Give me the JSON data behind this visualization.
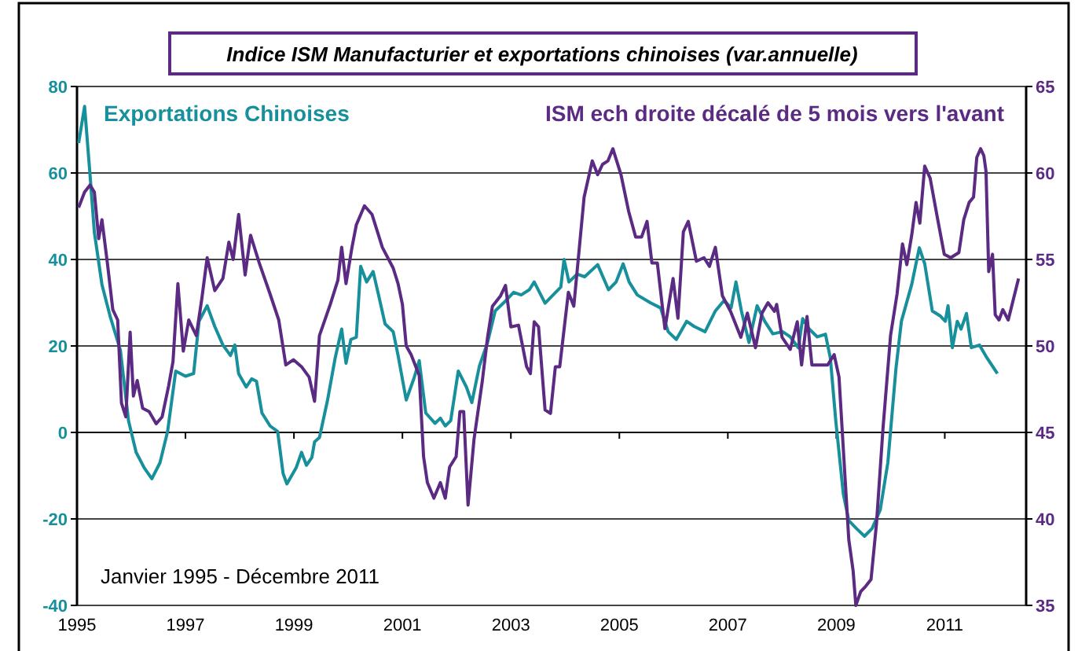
{
  "chart_data": {
    "type": "line",
    "title": "Indice ISM Manufacturier et exportations chinoises (var.annuelle)",
    "annotations": [
      "Janvier 1995 - Décembre 2011"
    ],
    "xlim": [
      1995,
      2012.5
    ],
    "xticks": [
      1995,
      1997,
      1999,
      2001,
      2003,
      2005,
      2007,
      2009,
      2011
    ],
    "ylim": [
      -40,
      80
    ],
    "yticks": [
      -40,
      -20,
      0,
      20,
      40,
      60,
      80
    ],
    "y2lim": [
      35,
      65
    ],
    "y2ticks": [
      35,
      40,
      45,
      50,
      55,
      60,
      65
    ],
    "grid": "y",
    "legend": "top",
    "series": [
      {
        "name": "Exportations Chinoises",
        "color": "#17909b",
        "x": [
          1995.03,
          1995.14,
          1995.24,
          1995.32,
          1995.46,
          1995.61,
          1995.8,
          1995.95,
          1996.09,
          1996.24,
          1996.38,
          1996.53,
          1996.67,
          1996.82,
          1997.0,
          1997.15,
          1997.25,
          1997.4,
          1997.54,
          1997.69,
          1997.83,
          1997.91,
          1997.98,
          1998.12,
          1998.22,
          1998.31,
          1998.41,
          1998.56,
          1998.7,
          1998.8,
          1998.87,
          1999.04,
          1999.14,
          1999.23,
          1999.33,
          1999.38,
          1999.47,
          1999.62,
          1999.76,
          1999.88,
          1999.96,
          2000.05,
          2000.15,
          2000.23,
          2000.34,
          2000.46,
          2000.56,
          2000.68,
          2000.83,
          2000.92,
          2001.07,
          2001.21,
          2001.31,
          2001.43,
          2001.6,
          2001.7,
          2001.79,
          2001.89,
          2002.03,
          2002.18,
          2002.28,
          2002.42,
          2002.57,
          2002.71,
          2002.86,
          2003.05,
          2003.19,
          2003.34,
          2003.43,
          2003.63,
          2003.92,
          2003.98,
          2004.07,
          2004.22,
          2004.36,
          2004.6,
          2004.8,
          2004.94,
          2005.07,
          2005.18,
          2005.33,
          2005.57,
          2005.76,
          2005.9,
          2006.05,
          2006.24,
          2006.38,
          2006.58,
          2006.77,
          2006.93,
          2007.06,
          2007.15,
          2007.25,
          2007.39,
          2007.54,
          2007.68,
          2007.83,
          2008.01,
          2008.15,
          2008.3,
          2008.38,
          2008.5,
          2008.65,
          2008.8,
          2008.89,
          2008.99,
          2009.13,
          2009.23,
          2009.37,
          2009.52,
          2009.66,
          2009.81,
          2009.95,
          2010.1,
          2010.2,
          2010.39,
          2010.53,
          2010.63,
          2010.77,
          2010.92,
          2011.01,
          2011.06,
          2011.14,
          2011.23,
          2011.3,
          2011.4,
          2011.49,
          2011.64,
          2011.78,
          2011.97
        ],
        "values": [
          66.9,
          75.4,
          59.6,
          46.3,
          34.2,
          26.9,
          19,
          2.7,
          -4.6,
          -8.2,
          -10.7,
          -7,
          0.2,
          14.2,
          13,
          13.6,
          25.7,
          29.3,
          24.5,
          20.2,
          17.8,
          20.2,
          13.6,
          10.5,
          12.4,
          11.8,
          4.5,
          1.5,
          0.2,
          -9.5,
          -11.9,
          -8.2,
          -4.6,
          -7.6,
          -5.8,
          -2.2,
          -1.2,
          7.5,
          17.2,
          23.9,
          16,
          21.5,
          22,
          38.4,
          34.8,
          37.2,
          31.8,
          25.1,
          23.3,
          17.8,
          7.5,
          12.4,
          16.6,
          4.5,
          2.1,
          3.3,
          1.5,
          2.7,
          14.2,
          10.5,
          6.9,
          15.4,
          20.8,
          28.1,
          29.9,
          32.4,
          31.8,
          33,
          34.8,
          29.9,
          33.6,
          40,
          34.8,
          36.6,
          36,
          38.8,
          33,
          34.8,
          39,
          34.8,
          31.8,
          30,
          28.8,
          23.3,
          21.5,
          25.7,
          24.5,
          23.3,
          28.1,
          30.5,
          28.8,
          34.8,
          28.1,
          20.8,
          29.3,
          25.7,
          22.8,
          23.3,
          22.1,
          19.6,
          26.3,
          23.9,
          22.1,
          22.7,
          17.2,
          2.7,
          -14.3,
          -20.4,
          -22.2,
          -24,
          -22.2,
          -17.9,
          -7,
          14.8,
          25.7,
          34.2,
          42.7,
          39,
          28.1,
          26.9,
          25.7,
          29.3,
          19.6,
          25.7,
          23.9,
          27.5,
          19.6,
          20.2,
          17.2,
          13.6
        ]
      },
      {
        "name": "ISM ech droite décalé de 5 mois vers l'avant",
        "color": "#5b2a83",
        "axis": "y2",
        "x": [
          1995.03,
          1995.14,
          1995.24,
          1995.32,
          1995.4,
          1995.46,
          1995.56,
          1995.66,
          1995.75,
          1995.82,
          1995.9,
          1995.98,
          1996.04,
          1996.11,
          1996.21,
          1996.33,
          1996.46,
          1996.57,
          1996.69,
          1996.77,
          1996.86,
          1996.96,
          1997.06,
          1997.2,
          1997.3,
          1997.4,
          1997.54,
          1997.69,
          1997.8,
          1997.88,
          1997.98,
          1998.1,
          1998.2,
          1998.36,
          1998.56,
          1998.72,
          1998.85,
          1998.99,
          1999.14,
          1999.28,
          1999.38,
          1999.47,
          1999.67,
          1999.81,
          1999.88,
          1999.96,
          2000.07,
          2000.15,
          2000.3,
          2000.44,
          2000.63,
          2000.83,
          2000.92,
          2001.0,
          2001.07,
          2001.16,
          2001.31,
          2001.39,
          2001.46,
          2001.58,
          2001.7,
          2001.79,
          2001.87,
          2001.99,
          2002.06,
          2002.13,
          2002.21,
          2002.32,
          2002.47,
          2002.57,
          2002.66,
          2002.81,
          2002.9,
          2003.0,
          2003.14,
          2003.29,
          2003.36,
          2003.43,
          2003.51,
          2003.63,
          2003.73,
          2003.82,
          2003.9,
          2004.06,
          2004.16,
          2004.35,
          2004.5,
          2004.6,
          2004.69,
          2004.79,
          2004.88,
          2005.03,
          2005.17,
          2005.3,
          2005.41,
          2005.51,
          2005.6,
          2005.7,
          2005.84,
          2005.99,
          2006.08,
          2006.18,
          2006.27,
          2006.42,
          2006.56,
          2006.66,
          2006.77,
          2006.9,
          2007.05,
          2007.24,
          2007.36,
          2007.51,
          2007.63,
          2007.74,
          2007.86,
          2007.9,
          2008.0,
          2008.15,
          2008.28,
          2008.36,
          2008.46,
          2008.55,
          2008.7,
          2008.84,
          2008.96,
          2009.05,
          2009.13,
          2009.23,
          2009.31,
          2009.36,
          2009.45,
          2009.54,
          2009.64,
          2009.74,
          2009.86,
          2010.0,
          2010.12,
          2010.22,
          2010.3,
          2010.39,
          2010.47,
          2010.54,
          2010.63,
          2010.73,
          2010.87,
          2010.99,
          2011.11,
          2011.26,
          2011.35,
          2011.45,
          2011.53,
          2011.59,
          2011.66,
          2011.72,
          2011.76,
          2011.81,
          2011.88,
          2011.93,
          2012.0,
          2012.07,
          2012.17,
          2012.36
        ],
        "values": [
          58.0,
          58.9,
          59.3,
          58.9,
          56.2,
          57.3,
          54.8,
          52.1,
          51.5,
          46.7,
          45.9,
          50.8,
          47.1,
          48.0,
          46.4,
          46.2,
          45.5,
          45.9,
          47.7,
          49.1,
          53.6,
          49.7,
          51.5,
          50.6,
          52.7,
          55.1,
          53.2,
          53.9,
          56.0,
          55.0,
          57.6,
          54.1,
          56.4,
          54.8,
          53.0,
          51.5,
          48.9,
          49.2,
          48.8,
          48.2,
          46.8,
          50.6,
          52.4,
          53.8,
          55.7,
          53.6,
          55.7,
          57.0,
          58.1,
          57.6,
          55.7,
          54.5,
          53.6,
          52.4,
          50.0,
          49.5,
          48.3,
          43.6,
          42.1,
          41.2,
          42.1,
          41.2,
          43.0,
          43.6,
          46.2,
          46.2,
          40.8,
          44.6,
          47.9,
          50.5,
          52.3,
          52.9,
          53.5,
          51.1,
          51.2,
          48.8,
          48.4,
          51.4,
          51.1,
          46.3,
          46.1,
          48.8,
          48.8,
          53.1,
          52.3,
          58.6,
          60.7,
          59.9,
          60.5,
          60.7,
          61.4,
          59.9,
          57.8,
          56.3,
          56.3,
          57.2,
          54.8,
          54.8,
          51.0,
          53.9,
          51.6,
          56.6,
          57.2,
          54.9,
          55.1,
          54.6,
          55.7,
          52.9,
          52.0,
          50.5,
          51.9,
          49.9,
          51.9,
          52.5,
          52.0,
          52.4,
          50.5,
          49.8,
          51.4,
          48.9,
          51.7,
          48.9,
          48.9,
          48.9,
          49.5,
          48.2,
          44.0,
          38.8,
          37.0,
          35.0,
          35.8,
          36.1,
          36.5,
          39.7,
          45.2,
          50.6,
          53.0,
          55.9,
          54.7,
          56.4,
          58.3,
          57.1,
          60.4,
          59.7,
          57.3,
          55.3,
          55.1,
          55.4,
          57.3,
          58.3,
          58.6,
          60.9,
          61.4,
          61.0,
          60.1,
          54.3,
          55.3,
          51.8,
          51.5,
          52.1,
          51.5,
          53.9
        ]
      }
    ]
  }
}
